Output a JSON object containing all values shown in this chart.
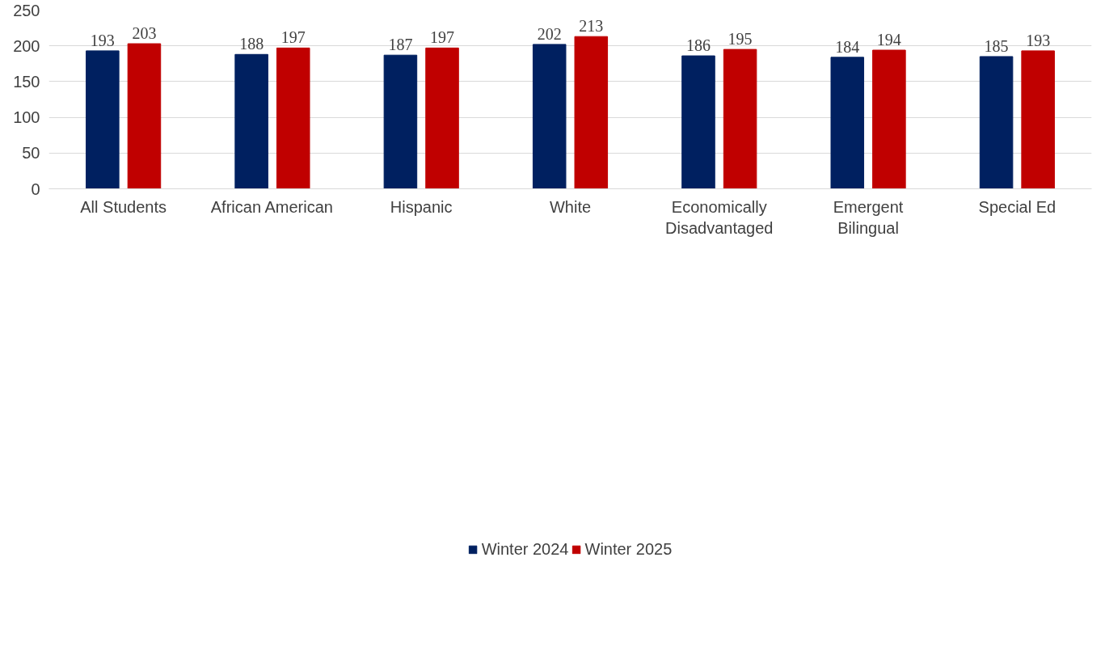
{
  "chart_data": {
    "type": "bar",
    "categories": [
      "All Students",
      "African American",
      "Hispanic",
      "White",
      "Economically\nDisadvantaged",
      "Emergent\nBilingual",
      "Special Ed"
    ],
    "series": [
      {
        "name": "Winter 2024",
        "color": "#002060",
        "values": [
          193,
          188,
          187,
          202,
          186,
          184,
          185
        ]
      },
      {
        "name": "Winter 2025",
        "color": "#c00000",
        "values": [
          203,
          197,
          197,
          213,
          195,
          194,
          193
        ]
      }
    ],
    "ylim": [
      0,
      250
    ],
    "yticks": [
      0,
      50,
      100,
      150,
      200,
      250
    ],
    "grid": "y",
    "legend": "bottom",
    "data_labels": true
  }
}
